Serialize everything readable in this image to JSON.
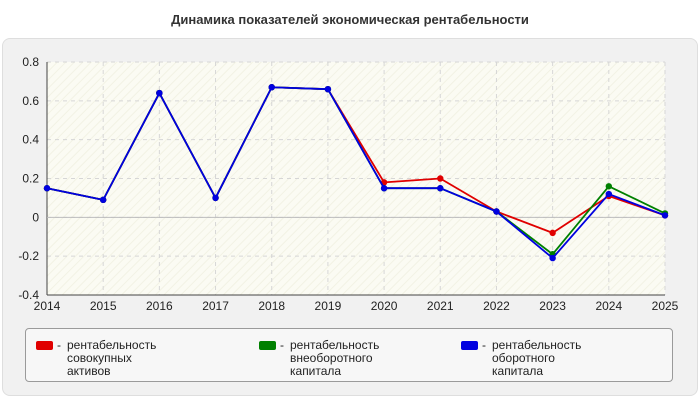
{
  "chart_data": {
    "type": "line",
    "title": "Динамика показателей экономическая рентабельности",
    "xlabel": "",
    "ylabel": "",
    "x": [
      "2014",
      "2015",
      "2016",
      "2017",
      "2018",
      "2019",
      "2020",
      "2021",
      "2022",
      "2023",
      "2024",
      "2025"
    ],
    "ylim": [
      -0.4,
      0.8
    ],
    "yticks": [
      "0.8",
      "0.6",
      "0.4",
      "0.2",
      "0",
      "-0.2",
      "-0.4"
    ],
    "grid": true,
    "legend_position": "bottom",
    "series": [
      {
        "name": "рентабельность совокупных активов",
        "color": "#e00000",
        "values": [
          0.15,
          0.09,
          0.64,
          0.1,
          0.67,
          0.66,
          0.18,
          0.2,
          0.03,
          -0.08,
          0.11,
          0.01
        ]
      },
      {
        "name": "рентабельность внеоборотного капитала",
        "color": "#008000",
        "values": [
          0.15,
          0.09,
          0.64,
          0.1,
          0.67,
          0.66,
          0.15,
          0.15,
          0.03,
          -0.19,
          0.16,
          0.02
        ]
      },
      {
        "name": "рентабельность оборотного капитала",
        "color": "#0000e0",
        "values": [
          0.15,
          0.09,
          0.64,
          0.1,
          0.67,
          0.66,
          0.15,
          0.15,
          0.03,
          -0.21,
          0.12,
          0.01
        ]
      }
    ]
  },
  "legend": {
    "dash": "-",
    "items": [
      {
        "line1": "рентабельность совокупных",
        "line2": "активов"
      },
      {
        "line1": "рентабельность",
        "line2": "внеоборотного капитала"
      },
      {
        "line1": "рентабельность оборотного",
        "line2": "капитала"
      }
    ]
  }
}
